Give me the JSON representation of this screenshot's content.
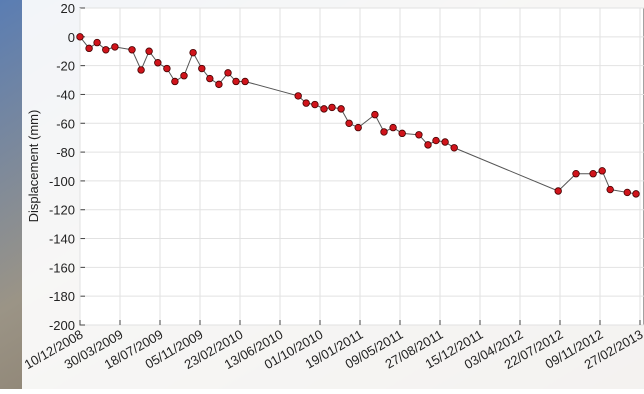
{
  "chart_data": {
    "type": "line",
    "ylabel": "Displacement (mm)",
    "x": [
      "10/12/2008",
      "04/01/2009",
      "26/01/2009",
      "19/02/2009",
      "16/03/2009",
      "02/05/2009",
      "27/05/2009",
      "18/06/2009",
      "12/07/2009",
      "06/08/2009",
      "28/08/2009",
      "22/09/2009",
      "17/10/2009",
      "10/11/2009",
      "02/12/2009",
      "27/12/2009",
      "21/01/2010",
      "12/02/2010",
      "09/03/2010",
      "02/08/2010",
      "24/08/2010",
      "17/09/2010",
      "12/10/2010",
      "03/11/2010",
      "28/11/2010",
      "20/12/2010",
      "14/01/2011",
      "01/03/2011",
      "26/03/2011",
      "20/04/2011",
      "15/05/2011",
      "30/06/2011",
      "25/07/2011",
      "16/08/2011",
      "10/09/2011",
      "05/10/2011",
      "17/07/2012",
      "04/09/2012",
      "21/10/2012",
      "15/11/2012",
      "07/12/2012",
      "23/01/2013",
      "16/02/2013"
    ],
    "series": [
      {
        "color": "#d0141b",
        "values": [
          0,
          -8,
          -4,
          -9,
          -7,
          -9,
          -23,
          -10,
          -18,
          -22,
          -31,
          -27,
          -11,
          -22,
          -29,
          -33,
          -25,
          -31,
          -31,
          -41,
          -46,
          -47,
          -50,
          -49,
          -50,
          -60,
          -63,
          -54,
          -66,
          -63,
          -67,
          -68,
          -75,
          -72,
          -73,
          -77,
          -107,
          -95,
          -95,
          -93,
          -106,
          -108,
          -109
        ]
      }
    ],
    "xlim": [
      "10/12/2008",
      "27/02/2013"
    ],
    "xticks": [
      "10/12/2008",
      "30/03/2009",
      "18/07/2009",
      "05/11/2009",
      "23/02/2010",
      "13/06/2010",
      "01/10/2010",
      "19/01/2011",
      "09/05/2011",
      "27/08/2011",
      "15/12/2011",
      "03/04/2012",
      "22/07/2012",
      "09/11/2012",
      "27/02/2013"
    ],
    "ylim": [
      20,
      -200
    ],
    "yticks": [
      20,
      0,
      -20,
      -40,
      -60,
      -80,
      -100,
      -120,
      -140,
      -160,
      -180,
      -200
    ],
    "grid": true
  }
}
